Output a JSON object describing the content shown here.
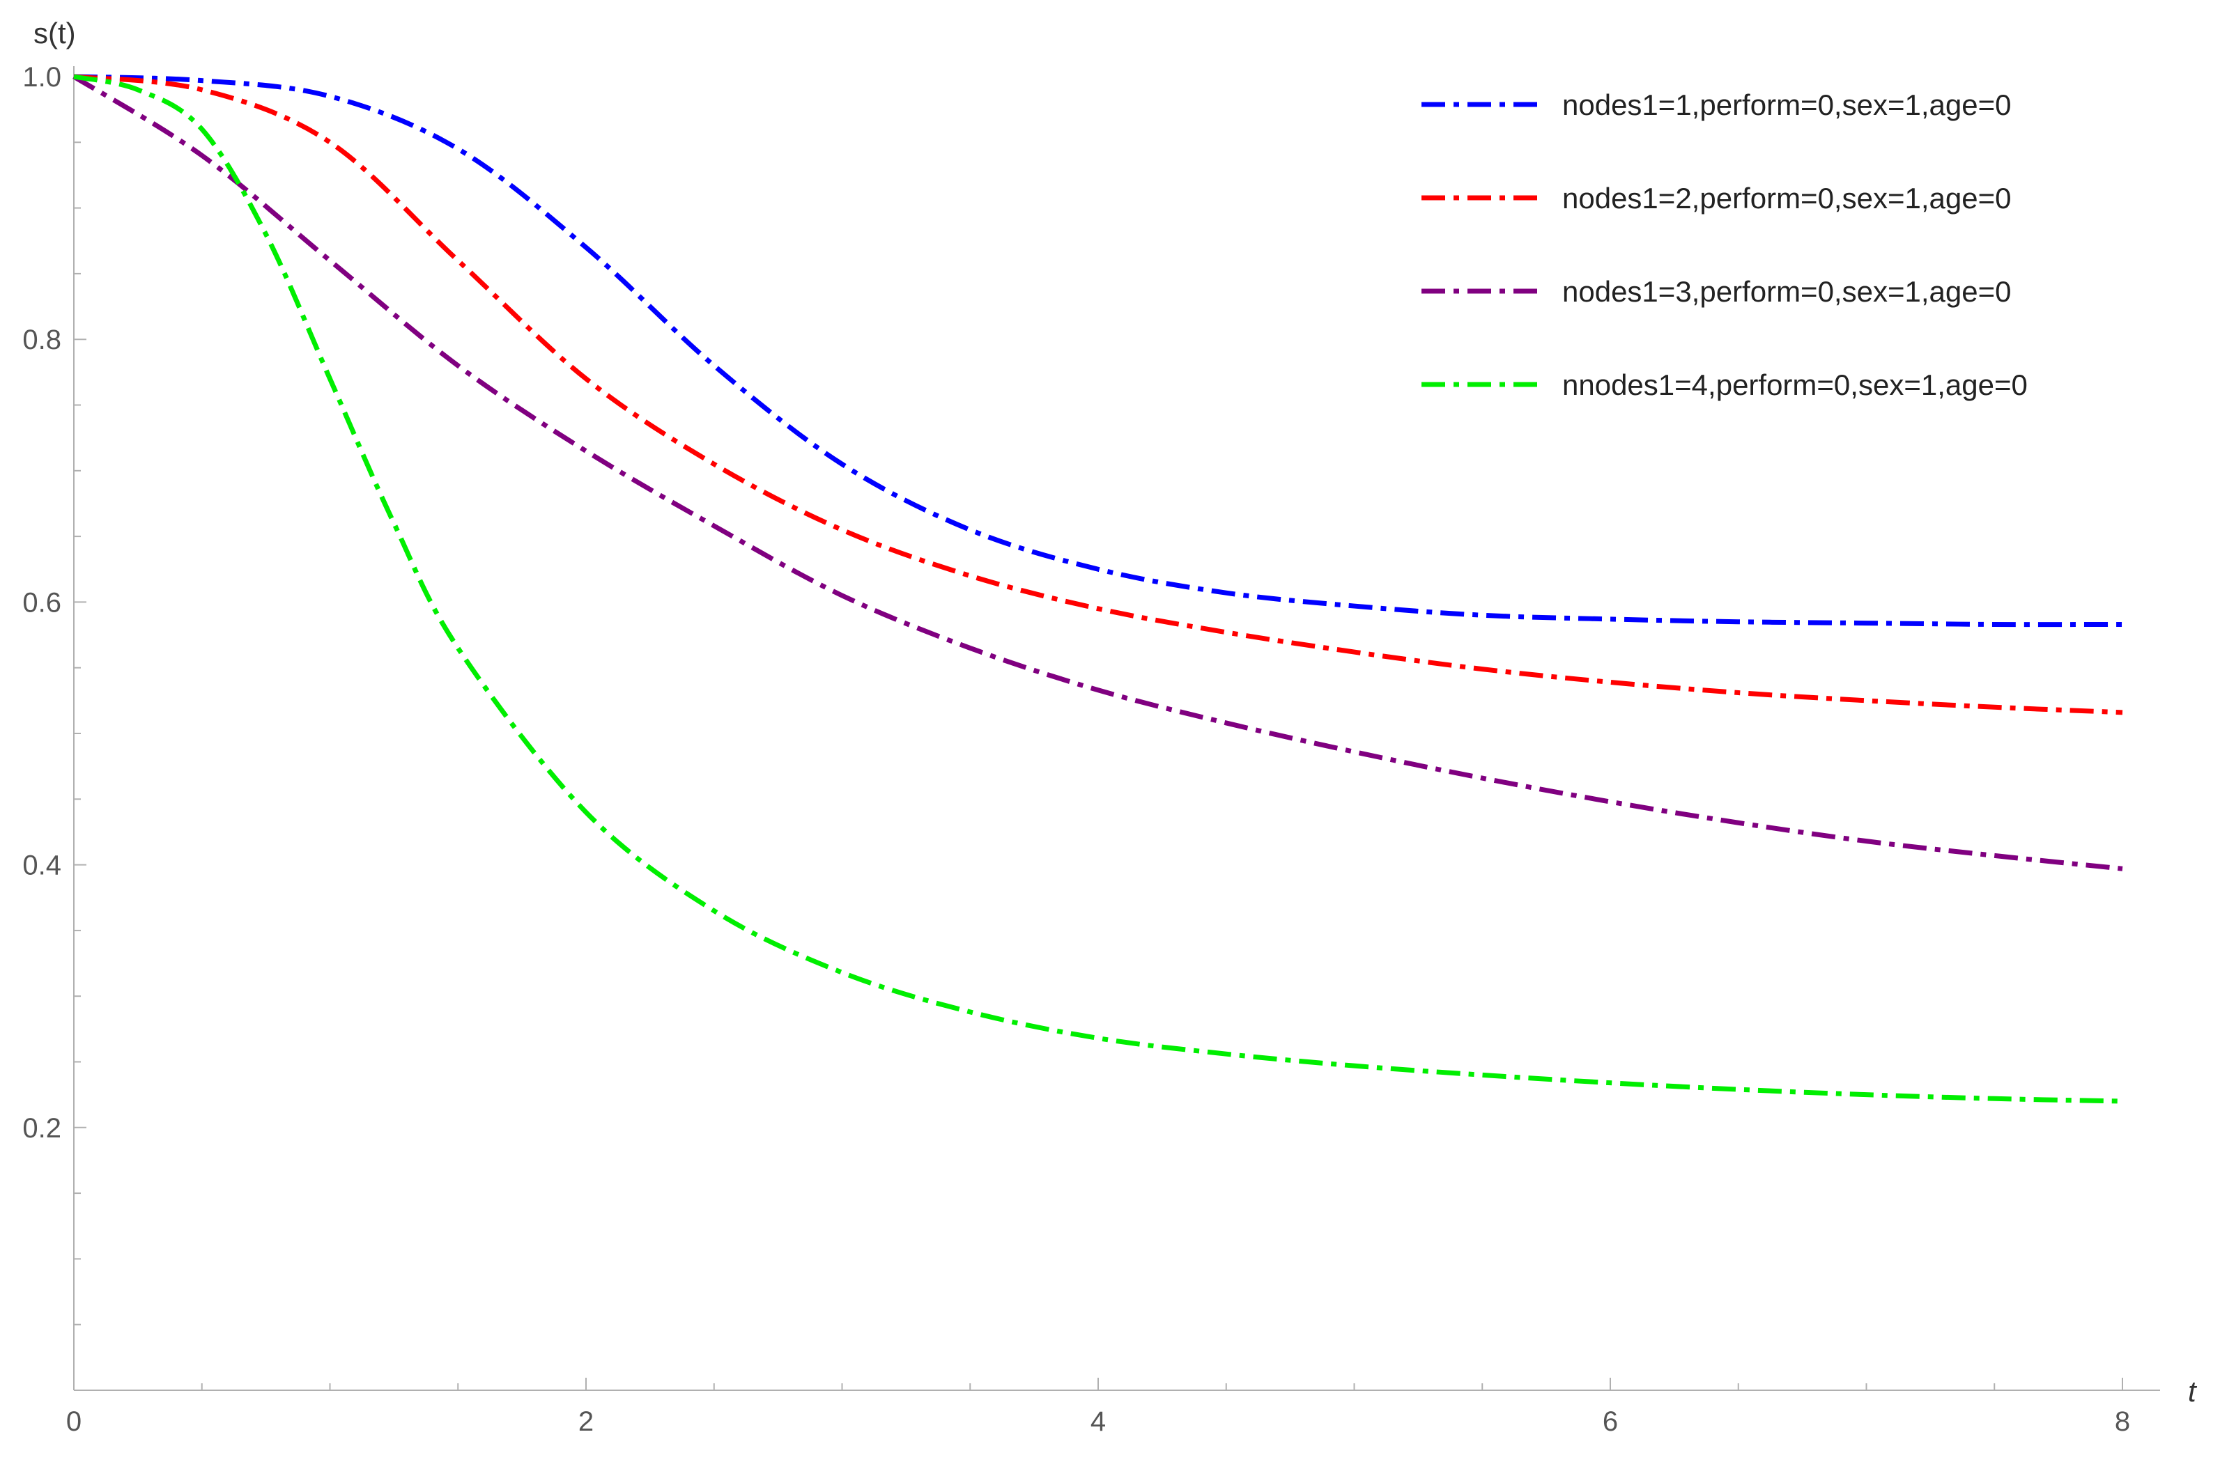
{
  "chart_data": {
    "type": "line",
    "xlabel": "t",
    "ylabel": "s(t)",
    "xlim": [
      0,
      8
    ],
    "ylim": [
      0,
      1.0
    ],
    "x_ticks": [
      0,
      2,
      4,
      6,
      8
    ],
    "x_tick_labels": [
      "0",
      "2",
      "4",
      "6",
      "8"
    ],
    "y_ticks": [
      0.2,
      0.4,
      0.6,
      0.8,
      1.0
    ],
    "y_tick_labels": [
      "0.2",
      "0.4",
      "0.6",
      "0.8",
      "1.0"
    ],
    "grid": false,
    "legend_position": "top-right",
    "line_style": "dash-dot",
    "series": [
      {
        "name": "nodes1=1,perform=0,sex=1,age=0",
        "color": "#0000ff",
        "x": [
          0,
          0.5,
          1.0,
          1.5,
          2.0,
          2.5,
          3.0,
          3.5,
          4.0,
          4.5,
          5.0,
          5.5,
          6.0,
          6.5,
          7.0,
          7.5,
          8.0
        ],
        "y": [
          1.0,
          0.997,
          0.985,
          0.945,
          0.87,
          0.78,
          0.705,
          0.655,
          0.625,
          0.607,
          0.597,
          0.59,
          0.587,
          0.585,
          0.584,
          0.583,
          0.583
        ]
      },
      {
        "name": "nodes1=2,perform=0,sex=1,age=0",
        "color": "#ff0000",
        "x": [
          0,
          0.5,
          1.0,
          1.5,
          2.0,
          2.5,
          3.0,
          3.5,
          4.0,
          4.5,
          5.0,
          5.5,
          6.0,
          6.5,
          7.0,
          7.5,
          8.0
        ],
        "y": [
          1.0,
          0.99,
          0.95,
          0.86,
          0.77,
          0.705,
          0.655,
          0.62,
          0.595,
          0.577,
          0.562,
          0.549,
          0.539,
          0.531,
          0.525,
          0.52,
          0.516
        ]
      },
      {
        "name": "nodes1=3,perform=0,sex=1,age=0",
        "color": "#800080",
        "x": [
          0,
          0.5,
          1.0,
          1.5,
          2.0,
          2.5,
          3.0,
          3.5,
          4.0,
          4.5,
          5.0,
          5.5,
          6.0,
          6.5,
          7.0,
          7.5,
          8.0
        ],
        "y": [
          1.0,
          0.94,
          0.86,
          0.78,
          0.715,
          0.658,
          0.605,
          0.565,
          0.533,
          0.508,
          0.486,
          0.466,
          0.448,
          0.432,
          0.418,
          0.407,
          0.397
        ]
      },
      {
        "name": "nnodes1=4,perform=0,sex=1,age=0",
        "color": "#00ee00",
        "x": [
          0,
          0.25,
          0.5,
          0.75,
          1.0,
          1.25,
          1.5,
          2.0,
          2.5,
          3.0,
          3.5,
          4.0,
          4.5,
          5.0,
          5.5,
          6.0,
          6.5,
          7.0,
          7.5,
          8.0
        ],
        "y": [
          1.0,
          0.99,
          0.96,
          0.88,
          0.77,
          0.66,
          0.565,
          0.44,
          0.365,
          0.318,
          0.288,
          0.268,
          0.256,
          0.247,
          0.24,
          0.234,
          0.229,
          0.225,
          0.222,
          0.22
        ]
      }
    ]
  }
}
